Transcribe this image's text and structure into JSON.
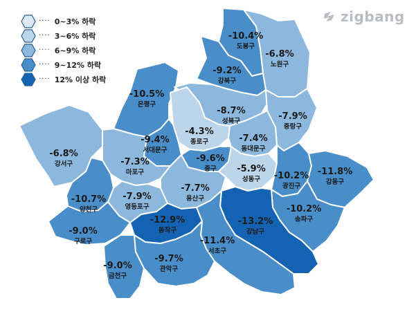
{
  "brand": {
    "name": "zigbang",
    "icon": "zigbang-logo-icon"
  },
  "legend": [
    {
      "label": "0~3% 하락",
      "color": "#dde9f4"
    },
    {
      "label": "3~6% 하락",
      "color": "#bdd5ea"
    },
    {
      "label": "6~9% 하락",
      "color": "#8db8dd"
    },
    {
      "label": "9~12% 하락",
      "color": "#4a8ec9"
    },
    {
      "label": "12% 이상 하락",
      "color": "#1463b2"
    }
  ],
  "districts": [
    {
      "name": "도봉구",
      "value": "-10.4%",
      "change": -10.4,
      "color": "#4a8ec9"
    },
    {
      "name": "노원구",
      "value": "-6.8%",
      "change": -6.8,
      "color": "#8db8dd"
    },
    {
      "name": "강북구",
      "value": "-9.2%",
      "change": -9.2,
      "color": "#4a8ec9"
    },
    {
      "name": "은평구",
      "value": "-10.5%",
      "change": -10.5,
      "color": "#4a8ec9"
    },
    {
      "name": "성북구",
      "value": "-8.7%",
      "change": -8.7,
      "color": "#8db8dd"
    },
    {
      "name": "중랑구",
      "value": "-7.9%",
      "change": -7.9,
      "color": "#8db8dd"
    },
    {
      "name": "종로구",
      "value": "-4.3%",
      "change": -4.3,
      "color": "#bdd5ea"
    },
    {
      "name": "서대문구",
      "value": "-9.4%",
      "change": -9.4,
      "color": "#4a8ec9"
    },
    {
      "name": "동대문구",
      "value": "-7.4%",
      "change": -7.4,
      "color": "#8db8dd"
    },
    {
      "name": "강서구",
      "value": "-6.8%",
      "change": -6.8,
      "color": "#8db8dd"
    },
    {
      "name": "마포구",
      "value": "-7.3%",
      "change": -7.3,
      "color": "#8db8dd"
    },
    {
      "name": "중구",
      "value": "-9.6%",
      "change": -9.6,
      "color": "#4a8ec9"
    },
    {
      "name": "성동구",
      "value": "-5.9%",
      "change": -5.9,
      "color": "#bdd5ea"
    },
    {
      "name": "광진구",
      "value": "-10.2%",
      "change": -10.2,
      "color": "#4a8ec9"
    },
    {
      "name": "강동구",
      "value": "-11.8%",
      "change": -11.8,
      "color": "#4a8ec9"
    },
    {
      "name": "양천구",
      "value": "-10.7%",
      "change": -10.7,
      "color": "#4a8ec9"
    },
    {
      "name": "영등포구",
      "value": "-7.9%",
      "change": -7.9,
      "color": "#8db8dd"
    },
    {
      "name": "용산구",
      "value": "-7.7%",
      "change": -7.7,
      "color": "#8db8dd"
    },
    {
      "name": "송파구",
      "value": "-10.2%",
      "change": -10.2,
      "color": "#4a8ec9"
    },
    {
      "name": "구로구",
      "value": "-9.0%",
      "change": -9.0,
      "color": "#4a8ec9"
    },
    {
      "name": "동작구",
      "value": "-12.9%",
      "change": -12.9,
      "color": "#1463b2"
    },
    {
      "name": "강남구",
      "value": "-13.2%",
      "change": -13.2,
      "color": "#1463b2"
    },
    {
      "name": "서초구",
      "value": "-11.4%",
      "change": -11.4,
      "color": "#4a8ec9"
    },
    {
      "name": "금천구",
      "value": "-9.0%",
      "change": -9.0,
      "color": "#4a8ec9"
    },
    {
      "name": "관악구",
      "value": "-9.7%",
      "change": -9.7,
      "color": "#4a8ec9"
    }
  ]
}
